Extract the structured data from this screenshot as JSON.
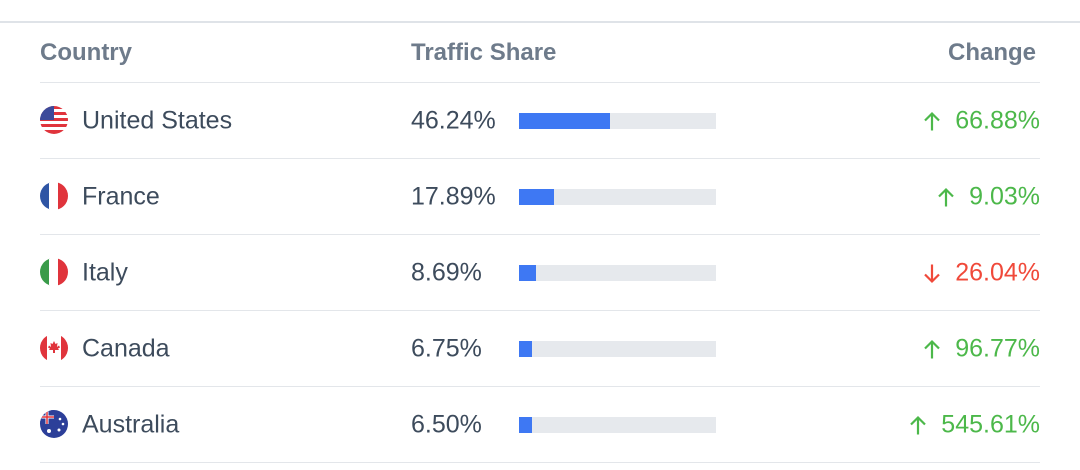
{
  "table": {
    "header": [
      "Country",
      "Traffic Share",
      "Change"
    ],
    "rows": [
      {
        "country": "United States",
        "share": {
          "value": 46.24,
          "label": "46.24%"
        },
        "change": {
          "direction": "up",
          "label": "66.88%"
        }
      },
      {
        "country": "France",
        "share": {
          "value": 17.89,
          "label": "17.89%"
        },
        "change": {
          "direction": "up",
          "label": "9.03%"
        }
      },
      {
        "country": "Italy",
        "share": {
          "value": 8.69,
          "label": "8.69%"
        },
        "change": {
          "direction": "down",
          "label": "26.04%"
        }
      },
      {
        "country": "Canada",
        "share": {
          "value": 6.75,
          "label": "6.75%"
        },
        "change": {
          "direction": "up",
          "label": "96.77%"
        }
      },
      {
        "country": "Australia",
        "share": {
          "value": 6.5,
          "label": "6.50%"
        },
        "change": {
          "direction": "up",
          "label": "545.61%"
        }
      }
    ]
  }
}
